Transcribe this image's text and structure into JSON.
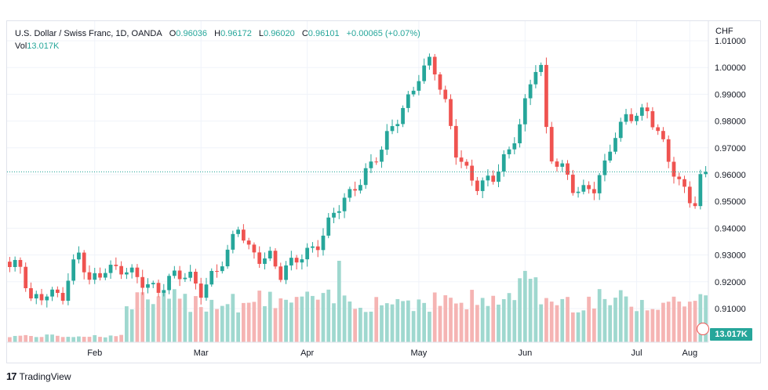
{
  "header": {
    "symbol": "U.S. Dollar / Swiss Franc, 1D, OANDA",
    "o_label": "O",
    "o_value": "0.96036",
    "h_label": "H",
    "h_value": "0.96172",
    "l_label": "L",
    "l_value": "0.96020",
    "c_label": "C",
    "c_value": "0.96101",
    "change": "+0.00065 (+0.07%)",
    "vol_label": "Vol",
    "vol_value": "13.017K"
  },
  "currency_label": "CHF",
  "last_price": 0.96101,
  "volume_badge": "13.017K",
  "branding": "TradingView",
  "colors": {
    "up": "#26a69a",
    "down": "#ef5350",
    "up_vol": "#9fd8cf",
    "down_vol": "#f5b4b3",
    "grid": "#f0f3fa",
    "price_line": "#26a69a"
  },
  "chart_data": {
    "type": "candlestick",
    "y_ticks": [
      "1.01000",
      "1.00000",
      "0.99000",
      "0.98000",
      "0.97000",
      "0.96000",
      "0.95000",
      "0.94000",
      "0.93000",
      "0.92000",
      "0.91000"
    ],
    "ylim": [
      0.9045,
      1.0135
    ],
    "x_ticks": [
      "Feb",
      "Mar",
      "Apr",
      "May",
      "Jun",
      "Jul",
      "Aug"
    ],
    "x_tick_index": [
      16,
      36,
      56,
      77,
      97,
      118,
      128
    ],
    "waypoints": [
      [
        0,
        0.9255
      ],
      [
        2,
        0.925
      ],
      [
        4,
        0.912
      ],
      [
        7,
        0.917
      ],
      [
        10,
        0.915
      ],
      [
        13,
        0.93
      ],
      [
        15,
        0.92
      ],
      [
        18,
        0.926
      ],
      [
        21,
        0.924
      ],
      [
        25,
        0.92
      ],
      [
        28,
        0.918
      ],
      [
        31,
        0.922
      ],
      [
        34,
        0.921
      ],
      [
        36,
        0.917
      ],
      [
        38,
        0.923
      ],
      [
        41,
        0.93
      ],
      [
        43,
        0.94
      ],
      [
        45,
        0.932
      ],
      [
        47,
        0.93
      ],
      [
        49,
        0.93
      ],
      [
        51,
        0.922
      ],
      [
        53,
        0.926
      ],
      [
        55,
        0.93
      ],
      [
        58,
        0.935
      ],
      [
        61,
        0.945
      ],
      [
        64,
        0.952
      ],
      [
        67,
        0.962
      ],
      [
        70,
        0.97
      ],
      [
        73,
        0.98
      ],
      [
        75,
        0.988
      ],
      [
        77,
        0.998
      ],
      [
        79,
        1.003
      ],
      [
        80,
        0.999
      ],
      [
        82,
        0.985
      ],
      [
        84,
        0.968
      ],
      [
        86,
        0.962
      ],
      [
        88,
        0.957
      ],
      [
        91,
        0.958
      ],
      [
        94,
        0.968
      ],
      [
        96,
        0.98
      ],
      [
        98,
        0.995
      ],
      [
        99,
        1.001
      ],
      [
        100,
        1.0
      ],
      [
        101,
        0.975
      ],
      [
        102,
        0.965
      ],
      [
        104,
        0.962
      ],
      [
        106,
        0.956
      ],
      [
        108,
        0.955
      ],
      [
        110,
        0.955
      ],
      [
        112,
        0.962
      ],
      [
        114,
        0.975
      ],
      [
        116,
        0.982
      ],
      [
        118,
        0.984
      ],
      [
        120,
        0.983
      ],
      [
        122,
        0.975
      ],
      [
        124,
        0.965
      ],
      [
        126,
        0.958
      ],
      [
        128,
        0.952
      ],
      [
        129,
        0.95
      ],
      [
        130,
        0.958
      ],
      [
        131,
        0.961
      ]
    ],
    "volume_range_start": [
      0,
      4
    ],
    "volume_range_mid": [
      8,
      20
    ],
    "volume_peak_index": 97
  }
}
